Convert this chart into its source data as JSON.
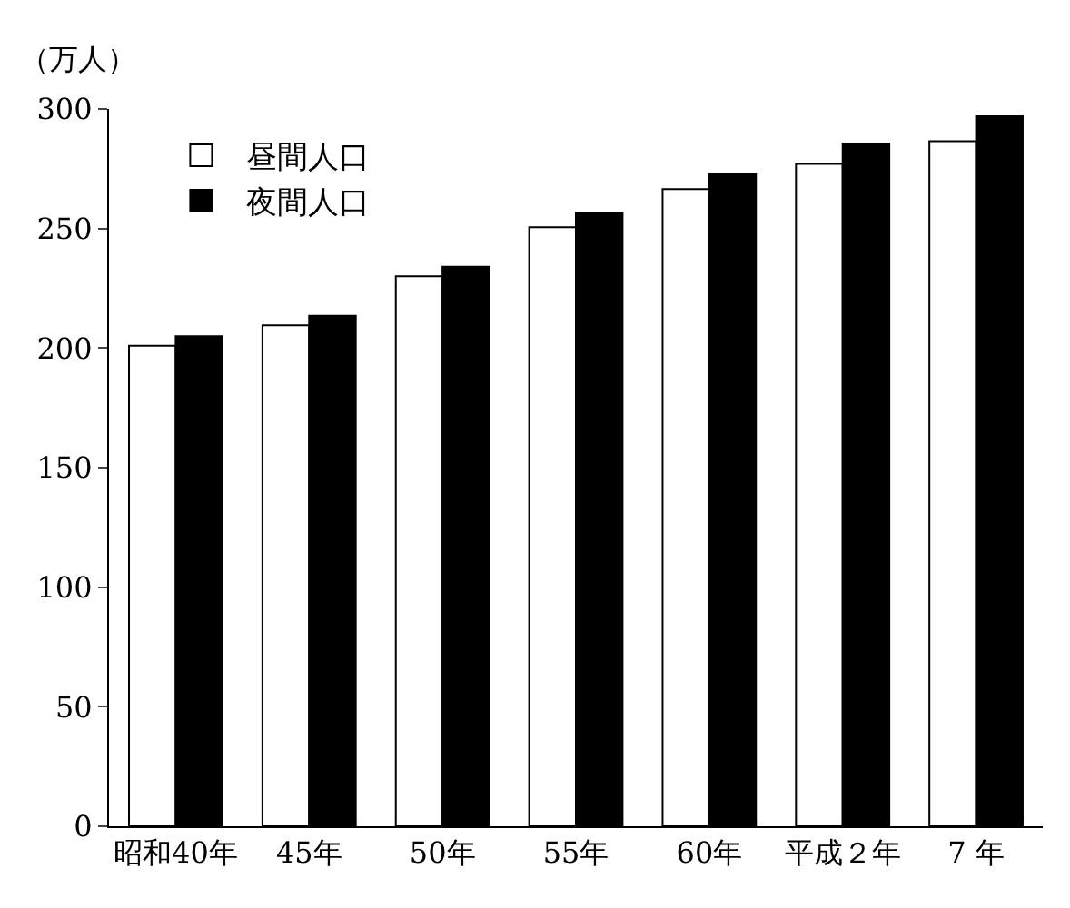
{
  "chart_data": {
    "type": "bar",
    "ylabel": "（万人）",
    "categories": [
      "昭和40年",
      "45年",
      "50年",
      "55年",
      "60年",
      "平成２年",
      "7 年"
    ],
    "series": [
      {
        "name": "昼間人口",
        "color": "#ffffff",
        "values": [
          201,
          209.5,
          230,
          250.5,
          266.5,
          277,
          286.5
        ]
      },
      {
        "name": "夜間人口",
        "color": "#000000",
        "values": [
          205,
          213.5,
          234,
          256.5,
          273,
          285.5,
          297
        ]
      }
    ],
    "ylim": [
      0,
      300
    ],
    "yticks": [
      0,
      50,
      100,
      150,
      200,
      250,
      300
    ],
    "legend": "top left"
  }
}
